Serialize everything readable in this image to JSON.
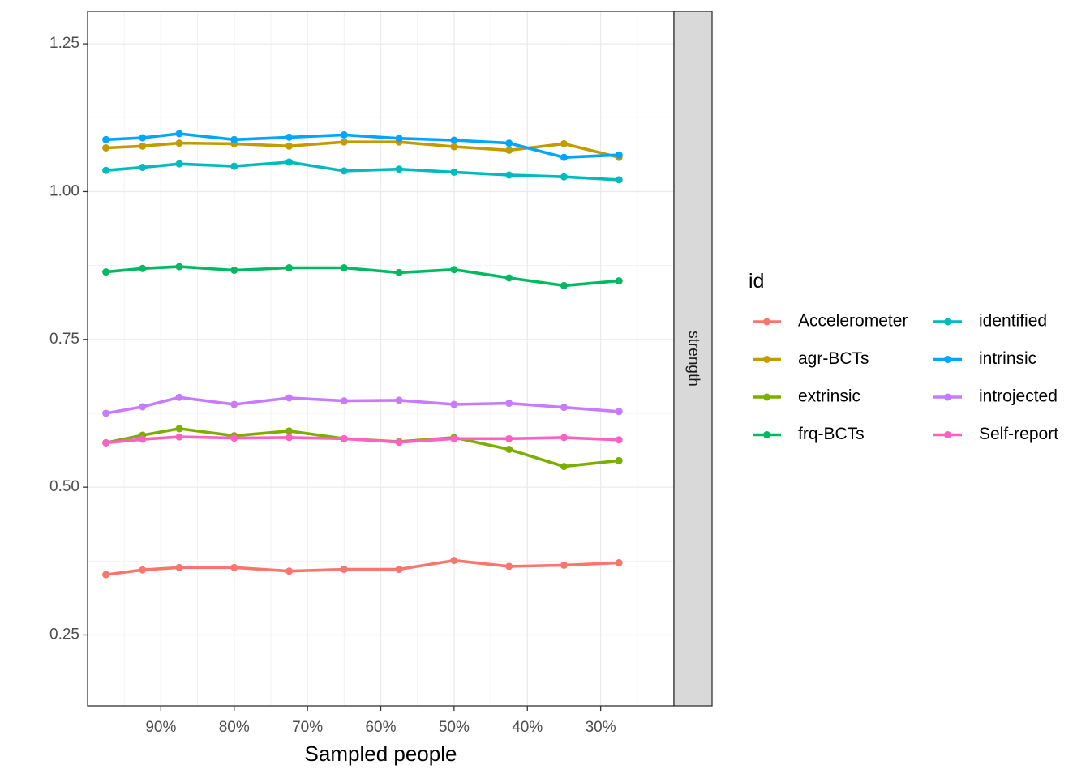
{
  "chart_data": {
    "type": "line",
    "xlabel": "Sampled people",
    "ylabel": "",
    "ylim": [
      0.13,
      1.305
    ],
    "x_range": [
      1.0,
      0.2
    ],
    "x_reversed": true,
    "x": [
      0.975,
      0.925,
      0.875,
      0.8,
      0.725,
      0.65,
      0.575,
      0.5,
      0.425,
      0.35,
      0.275
    ],
    "x_ticks": [
      {
        "value": 0.9,
        "label": "90%"
      },
      {
        "value": 0.8,
        "label": "80%"
      },
      {
        "value": 0.7,
        "label": "70%"
      },
      {
        "value": 0.6,
        "label": "60%"
      },
      {
        "value": 0.5,
        "label": "50%"
      },
      {
        "value": 0.4,
        "label": "40%"
      },
      {
        "value": 0.3,
        "label": "30%"
      }
    ],
    "y_ticks": [
      {
        "value": 0.25,
        "label": "0.25"
      },
      {
        "value": 0.5,
        "label": "0.50"
      },
      {
        "value": 0.75,
        "label": "0.75"
      },
      {
        "value": 1.0,
        "label": "1.00"
      },
      {
        "value": 1.25,
        "label": "1.25"
      }
    ],
    "grid": true,
    "facet_strip": "strength",
    "legend_title": "id",
    "legend_position": "right",
    "series": [
      {
        "name": "Accelerometer",
        "color": "#F8766D",
        "values": [
          0.352,
          0.36,
          0.364,
          0.364,
          0.358,
          0.361,
          0.361,
          0.376,
          0.366,
          0.368,
          0.372
        ]
      },
      {
        "name": "agr-BCTs",
        "color": "#C49A00",
        "values": [
          1.074,
          1.077,
          1.082,
          1.081,
          1.077,
          1.084,
          1.084,
          1.076,
          1.07,
          1.081,
          1.058
        ]
      },
      {
        "name": "extrinsic",
        "color": "#7CAE00",
        "values": [
          0.575,
          0.588,
          0.599,
          0.587,
          0.595,
          0.582,
          0.577,
          0.584,
          0.564,
          0.535,
          0.545
        ]
      },
      {
        "name": "frq-BCTs",
        "color": "#00B961",
        "values": [
          0.864,
          0.87,
          0.873,
          0.867,
          0.871,
          0.871,
          0.863,
          0.868,
          0.854,
          0.841,
          0.849
        ]
      },
      {
        "name": "identified",
        "color": "#00BBBE",
        "values": [
          1.036,
          1.041,
          1.047,
          1.043,
          1.05,
          1.035,
          1.038,
          1.033,
          1.028,
          1.025,
          1.02
        ]
      },
      {
        "name": "intrinsic",
        "color": "#00A5FF",
        "values": [
          1.088,
          1.091,
          1.098,
          1.088,
          1.092,
          1.096,
          1.09,
          1.087,
          1.082,
          1.058,
          1.062
        ]
      },
      {
        "name": "introjected",
        "color": "#C77CFF",
        "values": [
          0.625,
          0.636,
          0.652,
          0.64,
          0.651,
          0.646,
          0.647,
          0.64,
          0.642,
          0.635,
          0.628
        ]
      },
      {
        "name": "Self-report",
        "color": "#FF61C3",
        "values": [
          0.575,
          0.581,
          0.585,
          0.583,
          0.584,
          0.582,
          0.576,
          0.582,
          0.582,
          0.584,
          0.58
        ]
      }
    ]
  }
}
